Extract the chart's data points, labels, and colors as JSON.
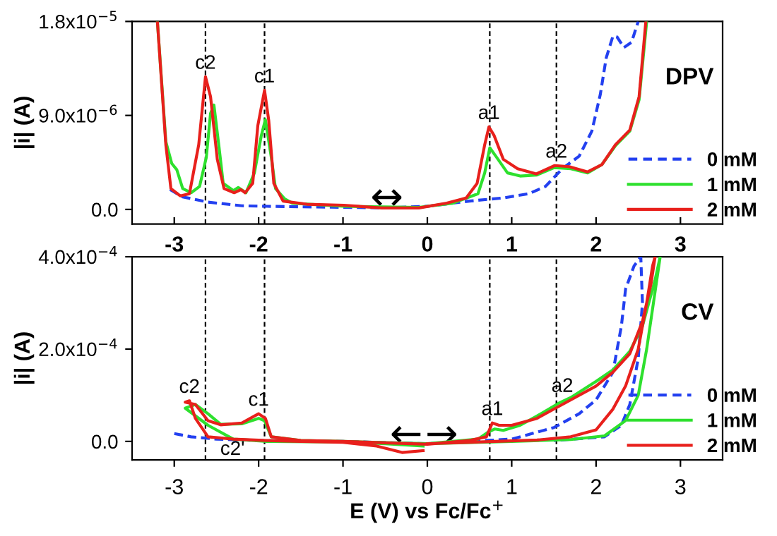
{
  "chart_data": [
    {
      "type": "line",
      "title": "DPV",
      "ylabel": "|i| (A)",
      "xlim": [
        -3.5,
        3.5
      ],
      "xticks": [
        -3,
        -2,
        -1,
        0,
        1,
        2,
        3
      ],
      "ylim": [
        -1.4e-06,
        1.8e-05
      ],
      "yticks": [
        {
          "value": 0,
          "label": "0.0"
        },
        {
          "value": 9e-06,
          "label": "9.0x10$^{−6}$"
        },
        {
          "value": 1.8e-05,
          "label": "1.8x10$^{−5}$"
        }
      ],
      "legend": "bottom right",
      "grid": false,
      "series": [
        {
          "name": "0 mM",
          "color": "#2340f0",
          "line_style": "dashed",
          "x": [
            -3.05,
            -2.9,
            -2.6,
            -2.2,
            -1.9,
            -1.5,
            -1.0,
            -0.5,
            0.0,
            0.5,
            0.9,
            1.2,
            1.4,
            1.6,
            1.8,
            1.95,
            2.05,
            2.12,
            2.2,
            2.25,
            2.33,
            2.42,
            2.5
          ],
          "values": [
            1.9e-06,
            1.2e-06,
            7e-07,
            3.5e-07,
            3e-07,
            2.5e-07,
            2e-07,
            1.5e-07,
            3e-07,
            8e-07,
            1.1e-06,
            1.5e-06,
            2.2e-06,
            3.9e-06,
            5.1e-06,
            7.5e-06,
            1.1e-05,
            1.45e-05,
            1.66e-05,
            1.65e-05,
            1.55e-05,
            1.6e-05,
            1.8e-05
          ]
        },
        {
          "name": "1 mM",
          "color": "#2ee02e",
          "line_style": "solid",
          "x": [
            -3.2,
            -3.1,
            -3.03,
            -2.97,
            -2.9,
            -2.8,
            -2.7,
            -2.62,
            -2.57,
            -2.53,
            -2.47,
            -2.42,
            -2.3,
            -2.24,
            -2.15,
            -2.05,
            -1.97,
            -1.92,
            -1.85,
            -1.8,
            -1.69,
            -1.6,
            -1.0,
            -0.1,
            0.3,
            0.6,
            0.68,
            0.74,
            0.82,
            0.95,
            1.1,
            1.3,
            1.5,
            1.7,
            1.9,
            2.07,
            2.23,
            2.4,
            2.51,
            2.6
          ],
          "values": [
            1.8e-05,
            6.5e-06,
            4.4e-06,
            3.8e-06,
            2e-06,
            1.6e-06,
            2.2e-06,
            5e-06,
            9.2e-06,
            1e-05,
            6e-06,
            2.5e-06,
            1.8e-06,
            2.1e-06,
            1.6e-06,
            3.5e-06,
            7e-06,
            8.6e-06,
            5e-06,
            2e-06,
            1e-06,
            6e-07,
            3e-07,
            2e-07,
            6e-07,
            1.5e-06,
            3.5e-06,
            5.9e-06,
            5e-06,
            3.5e-06,
            3.2e-06,
            3.3e-06,
            4e-06,
            3.9e-06,
            3.5e-06,
            4.3e-06,
            6.1e-06,
            7.5e-06,
            1.05e-05,
            1.8e-05
          ]
        },
        {
          "name": "2 mM",
          "color": "#e8201c",
          "line_style": "solid",
          "x": [
            -3.2,
            -3.1,
            -3.04,
            -2.93,
            -2.82,
            -2.71,
            -2.63,
            -2.57,
            -2.49,
            -2.41,
            -2.29,
            -2.21,
            -2.16,
            -2.07,
            -2.01,
            -1.93,
            -1.88,
            -1.82,
            -1.71,
            -1.43,
            -0.99,
            -0.54,
            -0.1,
            0.23,
            0.46,
            0.59,
            0.68,
            0.73,
            0.79,
            0.9,
            1.07,
            1.29,
            1.51,
            1.68,
            1.9,
            2.07,
            2.23,
            2.4,
            2.51,
            2.59
          ],
          "values": [
            1.8e-05,
            6.2e-06,
            2e-06,
            1.3e-06,
            1.5e-06,
            6.2e-06,
            1.27e-05,
            1.08e-05,
            4.8e-06,
            2e-06,
            1.6e-06,
            1.9e-06,
            1.6e-06,
            2.5e-06,
            8e-06,
            1.14e-05,
            8.5e-06,
            2.5e-06,
            8e-07,
            5e-07,
            4e-07,
            1.4e-07,
            1.4e-07,
            6e-07,
            1.1e-06,
            2.5e-06,
            6.2e-06,
            7.9e-06,
            7.1e-06,
            4.8e-06,
            3.9e-06,
            3.4e-06,
            4.2e-06,
            4.1e-06,
            3.6e-06,
            4.3e-06,
            6.2e-06,
            7.6e-06,
            1.08e-05,
            1.8e-05
          ]
        }
      ],
      "ref_lines": [
        {
          "axis": "x",
          "value": -2.63,
          "color": "#000000",
          "line_style": "dashed"
        },
        {
          "axis": "x",
          "value": -1.93,
          "color": "#000000",
          "line_style": "dashed"
        },
        {
          "axis": "x",
          "value": 0.74,
          "color": "#000000",
          "line_style": "dashed"
        },
        {
          "axis": "x",
          "value": 1.53,
          "color": "#000000",
          "line_style": "dashed"
        }
      ],
      "annotations": [
        {
          "text": "c2",
          "x": -2.63,
          "y": 1.27e-05
        },
        {
          "text": "c1",
          "x": -1.93,
          "y": 1.14e-05
        },
        {
          "text": "a1",
          "x": 0.73,
          "y": 7.9e-06
        },
        {
          "text": "a2",
          "x": 1.53,
          "y": 4.2e-06
        },
        {
          "text": "↔",
          "x": -0.48,
          "y": 1e-06
        }
      ]
    },
    {
      "type": "line",
      "title": "CV",
      "xlabel": "E (V) vs Fc/Fc$^{+}$",
      "ylabel": "|i| (A)",
      "xlim": [
        -3.5,
        3.5
      ],
      "xticks": [
        -3,
        -2,
        -1,
        0,
        1,
        2,
        3
      ],
      "ylim": [
        -4e-05,
        0.0004
      ],
      "yticks": [
        {
          "value": 0,
          "label": "0.0"
        },
        {
          "value": 0.0002,
          "label": "2.0x10$^{−4}$"
        },
        {
          "value": 0.0004,
          "label": "4.0x10$^{−4}$"
        }
      ],
      "legend": "bottom right",
      "grid": false,
      "series": [
        {
          "name": "0 mM",
          "color": "#2340f0",
          "line_style": "dashed",
          "x": [
            -3.0,
            -2.8,
            -2.5,
            -2.0,
            -1.0,
            0.0,
            0.5,
            1.0,
            1.5,
            1.8,
            2.0,
            2.2,
            2.3,
            2.35,
            2.45,
            2.53,
            2.55,
            2.5,
            2.4,
            2.3,
            2.1,
            1.5
          ],
          "values": [
            1.7e-05,
            1e-05,
            5e-06,
            2e-06,
            0.0,
            -5e-06,
            0.0,
            5e-06,
            3e-05,
            6e-05,
            9e-05,
            0.00015,
            0.00025,
            0.00033,
            0.00038,
            0.0004,
            0.0003,
            0.00018,
            8e-05,
            3.5e-05,
            1e-05,
            2e-06
          ]
        },
        {
          "name": "1 mM",
          "color": "#2ee02e",
          "line_style": "solid",
          "x": [
            -0.05,
            -0.5,
            -1.0,
            -1.9,
            -2.3,
            -2.6,
            -2.87,
            -2.75,
            -2.6,
            -2.45,
            -2.2,
            -2.0,
            -1.93,
            -1.85,
            -1.5,
            -1.0,
            0.0,
            0.6,
            0.72,
            0.8,
            0.9,
            1.1,
            1.3,
            1.55,
            1.7,
            2.0,
            2.2,
            2.4,
            2.55,
            2.7,
            2.76,
            2.72,
            2.6,
            2.5,
            2.35,
            2.1,
            1.7,
            1.0,
            0.0
          ],
          "values": [
            -1e-05,
            -5e-06,
            -1e-06,
            0.0,
            5e-06,
            3.5e-05,
            7.2e-05,
            8e-05,
            6e-05,
            3.7e-05,
            3.8e-05,
            5e-05,
            4.5e-05,
            1e-05,
            2e-06,
            0.0,
            -5e-06,
            5e-06,
            2e-05,
            2.7e-05,
            2.4e-05,
            3.5e-05,
            5.5e-05,
            8.2e-05,
            9.5e-05,
            0.00013,
            0.000155,
            0.000195,
            0.00025,
            0.00035,
            0.0004,
            0.00035,
            0.0002,
            0.0001,
            4.5e-05,
            1.2e-05,
            4e-06,
            0.0,
            -5e-06
          ]
        },
        {
          "name": "2 mM",
          "color": "#e8201c",
          "line_style": "solid",
          "x": [
            -0.05,
            -0.3,
            -0.6,
            -1.0,
            -1.5,
            -1.9,
            -2.3,
            -2.6,
            -2.75,
            -2.82,
            -2.87,
            -2.75,
            -2.6,
            -2.45,
            -2.2,
            -2.0,
            -1.92,
            -1.85,
            -1.5,
            -1.0,
            -0.5,
            0.0,
            0.5,
            0.7,
            0.77,
            0.85,
            1.0,
            1.3,
            1.55,
            1.7,
            2.0,
            2.2,
            2.4,
            2.55,
            2.65,
            2.7,
            2.67,
            2.6,
            2.5,
            2.35,
            2.2,
            2.0,
            1.7,
            1.3,
            0.5,
            0.0
          ],
          "values": [
            -2e-05,
            -2.4e-05,
            -1e-05,
            -2e-06,
            0.0,
            2e-06,
            5e-06,
            1e-05,
            5e-05,
            8.8e-05,
            8.5e-05,
            8e-05,
            4.5e-05,
            3.6e-05,
            4e-05,
            6e-05,
            5e-05,
            1e-05,
            2e-06,
            0.0,
            -3e-06,
            -6e-06,
            2e-06,
            1e-05,
            4e-05,
            3.5e-05,
            3.5e-05,
            5e-05,
            7.5e-05,
            9e-05,
            0.00012,
            0.00015,
            0.00019,
            0.00026,
            0.00034,
            0.0004,
            0.00038,
            0.0003,
            0.0002,
            0.00012,
            7e-05,
            2.5e-05,
            1e-05,
            3e-06,
            -2e-06,
            -5e-06
          ]
        }
      ],
      "ref_lines": [
        {
          "axis": "x",
          "value": -2.63,
          "color": "#000000",
          "line_style": "dashed"
        },
        {
          "axis": "x",
          "value": -1.93,
          "color": "#000000",
          "line_style": "dashed"
        },
        {
          "axis": "x",
          "value": 0.74,
          "color": "#000000",
          "line_style": "dashed"
        },
        {
          "axis": "x",
          "value": 1.53,
          "color": "#000000",
          "line_style": "dashed"
        }
      ],
      "annotations": [
        {
          "text": "c2",
          "x": -2.82,
          "y": 8.8e-05
        },
        {
          "text": "c1",
          "x": -2.0,
          "y": 6e-05
        },
        {
          "text": "a1",
          "x": 0.77,
          "y": 4e-05
        },
        {
          "text": "a2",
          "x": 1.6,
          "y": 9e-05
        },
        "c2'",
        {
          "text": "←",
          "x": -0.25,
          "y": 1.2e-05
        },
        {
          "text": "→",
          "x": 0.17,
          "y": 1.2e-05
        }
      ]
    }
  ]
}
